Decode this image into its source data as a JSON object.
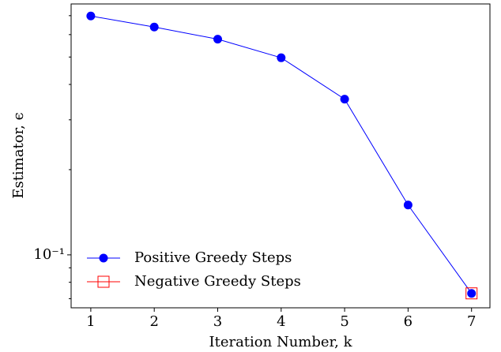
{
  "chart_data": {
    "type": "line",
    "x_label": "Iteration Number, k",
    "y_label": "Estimator, ϵ",
    "x": [
      1,
      2,
      3,
      4,
      5,
      6,
      7
    ],
    "series": [
      {
        "name": "Positive Greedy Steps",
        "color": "#0000ff",
        "marker": "circle",
        "values": [
          0.698,
          0.638,
          0.578,
          0.497,
          0.355,
          0.15,
          0.0731
        ]
      },
      {
        "name": "Negative Greedy Steps",
        "color": "#ff0000",
        "marker": "square",
        "values": [
          null,
          null,
          null,
          null,
          null,
          null,
          0.0731
        ]
      }
    ],
    "xlim": [
      0.69,
      7.29
    ],
    "xticks": [
      1,
      2,
      3,
      4,
      5,
      6,
      7
    ],
    "ylim": [
      0.065,
      0.77
    ],
    "log_y": true,
    "yticks": [
      {
        "value": 0.1,
        "label": "10⁻¹"
      }
    ],
    "yminor_ticks": [
      0.07,
      0.08,
      0.09,
      0.2,
      0.3,
      0.4,
      0.5,
      0.6,
      0.7
    ],
    "legend": "lower left",
    "grid": false
  }
}
